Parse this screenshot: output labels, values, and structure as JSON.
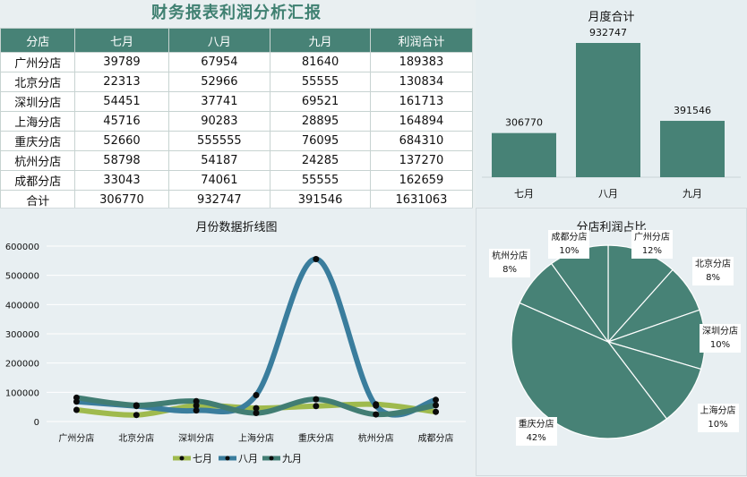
{
  "header": {
    "title": "财务报表利润分析汇报"
  },
  "table": {
    "columns": [
      "分店",
      "七月",
      "八月",
      "九月",
      "利润合计"
    ],
    "rows": [
      [
        "广州分店",
        "39789",
        "67954",
        "81640",
        "189383"
      ],
      [
        "北京分店",
        "22313",
        "52966",
        "55555",
        "130834"
      ],
      [
        "深圳分店",
        "54451",
        "37741",
        "69521",
        "161713"
      ],
      [
        "上海分店",
        "45716",
        "90283",
        "28895",
        "164894"
      ],
      [
        "重庆分店",
        "52660",
        "555555",
        "76095",
        "684310"
      ],
      [
        "杭州分店",
        "58798",
        "54187",
        "24285",
        "137270"
      ],
      [
        "成都分店",
        "33043",
        "74061",
        "55555",
        "162659"
      ],
      [
        "合计",
        "306770",
        "932747",
        "391546",
        "1631063"
      ]
    ]
  },
  "colors": {
    "teal": "#478276",
    "line_july": "#9fba4d",
    "line_aug": "#3a7d9d",
    "line_sep": "#417d73",
    "header_text": "#3f8071"
  },
  "chart_data": [
    {
      "type": "bar",
      "title": "月度合计",
      "categories": [
        "七月",
        "八月",
        "九月"
      ],
      "values": [
        306770,
        932747,
        391546
      ],
      "ylim": [
        0,
        1000000
      ],
      "grid": false,
      "legend": "none"
    },
    {
      "type": "line",
      "title": "月份数据折线图",
      "categories": [
        "广州分店",
        "北京分店",
        "深圳分店",
        "上海分店",
        "重庆分店",
        "杭州分店",
        "成都分店"
      ],
      "series": [
        {
          "name": "七月",
          "values": [
            39789,
            22313,
            54451,
            45716,
            52660,
            58798,
            33043
          ]
        },
        {
          "name": "八月",
          "values": [
            67954,
            52966,
            37741,
            90283,
            555555,
            54187,
            74061
          ]
        },
        {
          "name": "九月",
          "values": [
            81640,
            55555,
            69521,
            28895,
            76095,
            24285,
            55555
          ]
        }
      ],
      "yticks": [
        "0",
        "100000",
        "200000",
        "300000",
        "400000",
        "500000",
        "600000"
      ],
      "ylim": [
        0,
        600000
      ],
      "grid": true,
      "legend": "bottom"
    },
    {
      "type": "pie",
      "title": "分店利润占比",
      "categories": [
        "广州分店",
        "北京分店",
        "深圳分店",
        "上海分店",
        "重庆分店",
        "杭州分店",
        "成都分店"
      ],
      "values": [
        189383,
        130834,
        161713,
        164894,
        684310,
        137270,
        162659
      ],
      "percent_labels": [
        "12%",
        "8%",
        "10%",
        "10%",
        "42%",
        "8%",
        "10%"
      ],
      "legend": "none"
    }
  ]
}
